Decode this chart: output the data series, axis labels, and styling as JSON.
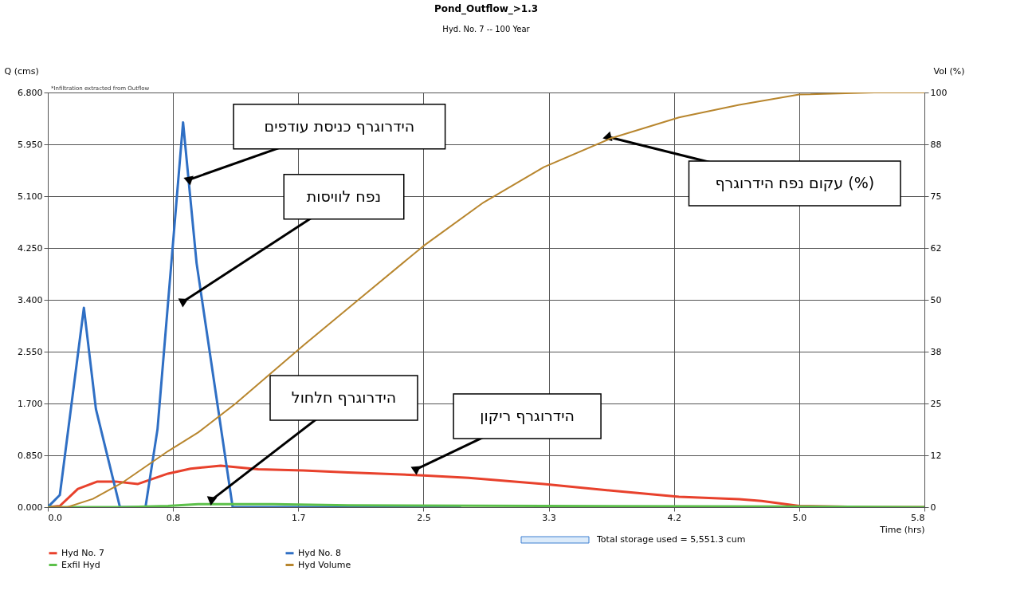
{
  "chart_data": {
    "type": "line",
    "title": "Pond_Outflow_>1.3",
    "subtitle": "Hyd. No. 7 -- 100 Year",
    "xlabel": "Time (hrs)",
    "ylabel": "Q (cms)",
    "y2label": "Vol (%)",
    "xlim": [
      0,
      5.833
    ],
    "ylim": [
      0,
      6.8
    ],
    "y2lim": [
      0,
      100
    ],
    "xticks": [
      {
        "value": 0,
        "label": "0.0"
      },
      {
        "value": 0.833,
        "label": "0.8"
      },
      {
        "value": 1.667,
        "label": "1.7"
      },
      {
        "value": 2.5,
        "label": "2.5"
      },
      {
        "value": 3.333,
        "label": "3.3"
      },
      {
        "value": 4.167,
        "label": "4.2"
      },
      {
        "value": 5.0,
        "label": "5.0"
      },
      {
        "value": 5.833,
        "label": "5.8"
      }
    ],
    "yticks": [
      {
        "value": 0,
        "label": "0.000"
      },
      {
        "value": 0.85,
        "label": "0.850"
      },
      {
        "value": 1.7,
        "label": "1.700"
      },
      {
        "value": 2.55,
        "label": "2.550"
      },
      {
        "value": 3.4,
        "label": "3.400"
      },
      {
        "value": 4.25,
        "label": "4.250"
      },
      {
        "value": 5.1,
        "label": "5.100"
      },
      {
        "value": 5.95,
        "label": "5.950"
      },
      {
        "value": 6.8,
        "label": "6.800"
      }
    ],
    "y2ticks": [
      0,
      {
        "value": 12.5,
        "label": "12"
      },
      25,
      {
        "value": 37.5,
        "label": "38"
      },
      50,
      {
        "value": 62.5,
        "label": "62"
      },
      75,
      {
        "value": 87.5,
        "label": "88"
      },
      100
    ],
    "grid": true,
    "legend": "bottom",
    "marker": "none",
    "line_style": "solid",
    "series": [
      {
        "name": "Hyd No. 7",
        "color": "#e8412c",
        "x": [
          0,
          0.08,
          0.2,
          0.33,
          0.45,
          0.6,
          0.8,
          0.95,
          1.15,
          1.4,
          1.7,
          2.0,
          2.5,
          2.8,
          3.3,
          3.75,
          4.2,
          4.6,
          4.75,
          5.0,
          5.5,
          5.833
        ],
        "values": [
          0,
          0.02,
          0.3,
          0.42,
          0.42,
          0.38,
          0.55,
          0.63,
          0.68,
          0.62,
          0.6,
          0.57,
          0.52,
          0.48,
          0.38,
          0.27,
          0.17,
          0.13,
          0.1,
          0.02,
          0,
          0
        ]
      },
      {
        "name": "Hyd No. 8",
        "color": "#2f6fc4",
        "x": [
          0,
          0.08,
          0.24,
          0.32,
          0.48,
          0.65,
          0.73,
          0.9,
          0.99,
          1.23,
          2.75
        ],
        "values": [
          0,
          0.2,
          3.27,
          1.61,
          0,
          0,
          1.28,
          6.31,
          4.0,
          0,
          0
        ]
      },
      {
        "name": "Exfil Hyd",
        "color": "#5cc04a",
        "x": [
          0,
          0.5,
          0.8,
          1.0,
          1.5,
          2.0,
          3.3,
          5.0,
          5.833
        ],
        "values": [
          0,
          0,
          0.02,
          0.05,
          0.05,
          0.03,
          0.02,
          0.01,
          0
        ]
      },
      {
        "name": "Hyd Volume",
        "color": "#b8862e",
        "axis": "y2",
        "x": [
          0,
          0.13,
          0.3,
          0.5,
          0.8,
          1.0,
          1.25,
          1.7,
          2.1,
          2.5,
          2.9,
          3.3,
          3.75,
          4.2,
          4.6,
          5.0,
          5.5,
          5.833
        ],
        "values": [
          0,
          0,
          2,
          6,
          13.5,
          18,
          25,
          39,
          51,
          63,
          73.5,
          82,
          89,
          94,
          97,
          99.5,
          100,
          100
        ]
      }
    ],
    "annotations": [
      "*Infiltration extracted from Outflow",
      "Total storage used = 5,551.3 cum",
      {
        "text": "הידרוגרף כניסת עודפים",
        "x": 0.94,
        "y": 5.37
      },
      {
        "text": "נפח לוויסות",
        "x": 0.9,
        "y": 3.37
      },
      {
        "text": "עקום נפח הידרוגרף (%)",
        "x": 3.73,
        "y": 6.07
      },
      {
        "text": "הידרוגרף חלחול",
        "x": 1.09,
        "y": 0.12
      },
      {
        "text": "הידרוגרף ריקון",
        "x": 2.45,
        "y": 0.62
      }
    ]
  }
}
